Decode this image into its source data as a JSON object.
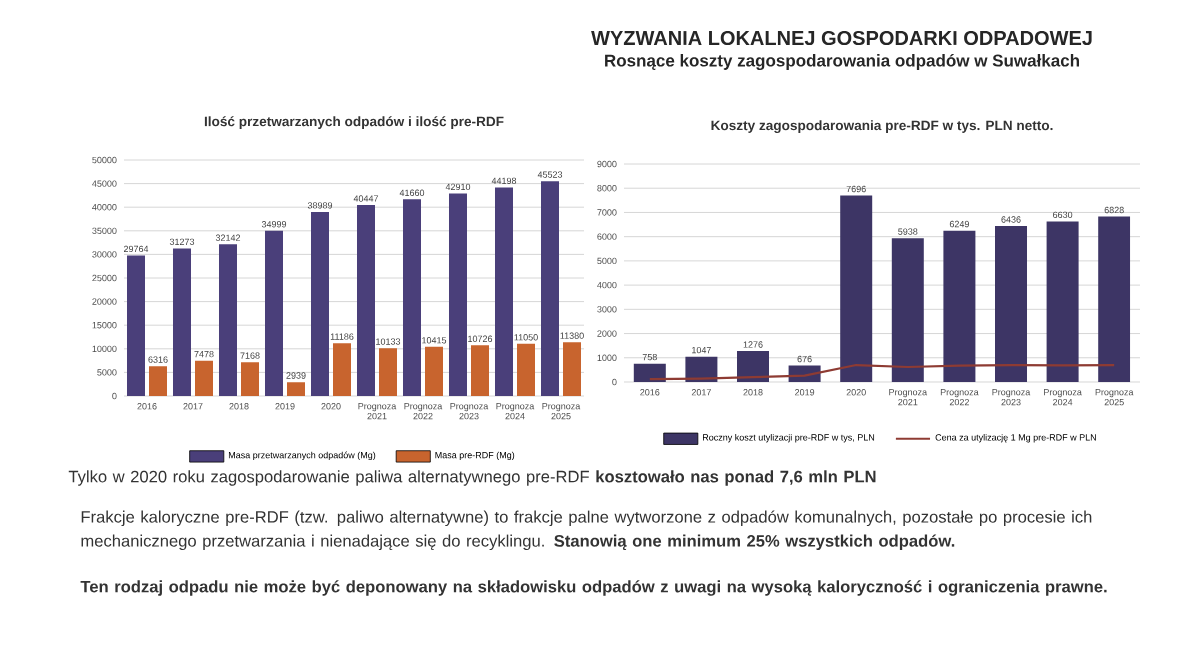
{
  "chart_data": [
    {
      "type": "other",
      "title": "WYZWANIA LOKALNEJ GOSPODARKI ODPADOWEJ",
      "subtitle": "Rosnące koszty zagospodarowania odpadów w Suwałkach",
      "annotations": [
        "Tylko w 2020 roku zagospodarowanie paliwa alternatywnego pre-RDF **kosztowało nas ponad 7,6 mln PLN**",
        "Frakcje kaloryczne pre-RDF (tzw. paliwo alternatywne) to frakcje palne wytworzone z odpadów komunalnych, pozostałe po procesie ich mechanicznego przetwarzania i nienadające się do recyklingu. **Stanowią one minimum 25% wszystkich odpadów.**",
        "Ten rodzaj odpadu nie może być deponowany na składowisku odpadów z uwagi na wysoką kaloryczność i ograniczenia prawne."
      ]
    },
    {
      "type": "bar",
      "title": "Ilość przetwarzanych odpadów i ilość pre-RDF",
      "categories": [
        "2016",
        "2017",
        "2018",
        "2019",
        "2020",
        "Prognoza 2021",
        "Prognoza 2022",
        "Prognoza 2023",
        "Prognoza 2024",
        "Prognoza 2025"
      ],
      "series": [
        {
          "name": "Masa przetwarzanych odpadów (Mg)",
          "color": "#4a3f7a",
          "values": [
            29764,
            31273,
            32142,
            34999,
            38989,
            40447,
            41660,
            42910,
            44198,
            45523
          ]
        },
        {
          "name": "Masa pre-RDF (Mg)",
          "color": "#c8642e",
          "values": [
            6316,
            7478,
            7168,
            2939,
            11186,
            10133,
            10415,
            10726,
            11050,
            11380
          ]
        }
      ],
      "ylim": [
        0,
        50000
      ],
      "yticks": [
        0,
        5000,
        10000,
        15000,
        20000,
        25000,
        30000,
        35000,
        40000,
        45000,
        50000
      ],
      "grid": "y",
      "legend": "bottom",
      "data_labels": true
    },
    {
      "type": "bar",
      "title": "Koszty zagospodarowania pre-RDF w tys. PLN netto.",
      "categories": [
        "2016",
        "2017",
        "2018",
        "2019",
        "2020",
        "Prognoza 2021",
        "Prognoza 2022",
        "Prognoza 2023",
        "Prognoza 2024",
        "Prognoza 2025"
      ],
      "series": [
        {
          "name": "Roczny koszt utylizacji pre-RDF w tys, PLN",
          "color": "#3d3565",
          "values": [
            758,
            1047,
            1276,
            676,
            7696,
            5938,
            6249,
            6436,
            6630,
            6828
          ],
          "value_labels": [
            "758",
            "1047",
            "1276",
            "676",
            "7696",
            "5938",
            "6249",
            "6436",
            "6630",
            "6828"
          ]
        },
        {
          "name": "Cena za utylizację 1 Mg pre-RDF w PLN",
          "type": "line",
          "color": "#8e3b33",
          "values": [
            120,
            140,
            200,
            260,
            700,
            620,
            680,
            700,
            690,
            700
          ]
        }
      ],
      "ylim": [
        0,
        9000
      ],
      "yticks": [
        0,
        1000,
        2000,
        3000,
        4000,
        5000,
        6000,
        7000,
        8000,
        9000
      ],
      "grid": "y",
      "legend": "bottom"
    }
  ]
}
